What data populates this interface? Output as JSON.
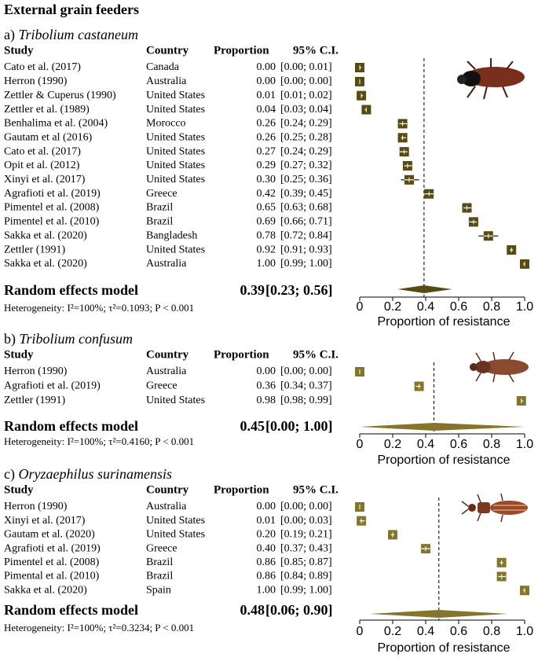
{
  "title": "External grain feeders",
  "chart_data": [
    {
      "type": "forest",
      "label": "a)",
      "species": "Tribolium castaneum",
      "color": "#574b12",
      "columns": [
        "Study",
        "Country",
        "Proportion",
        "95% C.I."
      ],
      "studies": [
        "Cato et al. (2017)",
        "Herron (1990)",
        "Zettler & Cuperus (1990)",
        "Zettler et al. (1989)",
        "Benhalima et al. (2004)",
        "Gautam et al (2016)",
        "Cato et al. (2017)",
        "Opit et al. (2012)",
        "Xinyi et al. (2017)",
        "Agrafioti et al. (2019)",
        "Pimentel et al. (2008)",
        "Pimentel et al. (2010)",
        "Sakka et al. (2020)",
        "Zettler (1991)",
        "Sakka et al. (2020)"
      ],
      "countries": [
        "Canada",
        "Australia",
        "United States",
        "United States",
        "Morocco",
        "United States",
        "United States",
        "United States",
        "United States",
        "Greece",
        "Brazil",
        "Brazil",
        "Bangladesh",
        "United States",
        "Australia"
      ],
      "values": [
        0,
        0,
        0.01,
        0.04,
        0.26,
        0.26,
        0.27,
        0.29,
        0.3,
        0.42,
        0.65,
        0.69,
        0.78,
        0.92,
        1
      ],
      "value_labels": [
        "0.00",
        "0.00",
        "0.01",
        "0.04",
        "0.26",
        "0.26",
        "0.27",
        "0.29",
        "0.30",
        "0.42",
        "0.65",
        "0.69",
        "0.78",
        "0.92",
        "1.00"
      ],
      "ci_lower": [
        0,
        0,
        0.01,
        0.03,
        0.24,
        0.25,
        0.24,
        0.27,
        0.25,
        0.39,
        0.63,
        0.66,
        0.72,
        0.91,
        0.99
      ],
      "ci_upper": [
        0.01,
        0,
        0.02,
        0.04,
        0.29,
        0.28,
        0.29,
        0.32,
        0.36,
        0.45,
        0.68,
        0.71,
        0.84,
        0.93,
        1
      ],
      "ci_labels": [
        "[0.00; 0.01]",
        "[0.00; 0.00]",
        "[0.01; 0.02]",
        "[0.03; 0.04]",
        "[0.24; 0.29]",
        "[0.25; 0.28]",
        "[0.24; 0.29]",
        "[0.27; 0.32]",
        "[0.25; 0.36]",
        "[0.39; 0.45]",
        "[0.63; 0.68]",
        "[0.66; 0.71]",
        "[0.72; 0.84]",
        "[0.91; 0.93]",
        "[0.99; 1.00]"
      ],
      "pooled": {
        "label": "Random effects model",
        "value": 0.39,
        "value_label": "0.39",
        "ci_lower": 0.23,
        "ci_upper": 0.56,
        "ci_label": "[0.23; 0.56]"
      },
      "heterogeneity": "Heterogeneity: I²=100%; τ²=0.1093; P < 0.001",
      "xlim": [
        0,
        1
      ],
      "xticks": [
        0,
        0.2,
        0.4,
        0.6,
        0.8,
        {
          "value": 1,
          "label": "1.0"
        }
      ],
      "xlabel": "Proportion of resistance"
    },
    {
      "type": "forest",
      "label": "b)",
      "species": "Tribolium confusum",
      "color": "#85742c",
      "columns": [
        "Study",
        "Country",
        "Proportion",
        "95% C.I."
      ],
      "studies": [
        "Herron (1990)",
        "Agrafioti et al. (2019)",
        "Zettler (1991)"
      ],
      "countries": [
        "Australia",
        "Greece",
        "United States"
      ],
      "values": [
        0,
        0.36,
        0.98
      ],
      "value_labels": [
        "0.00",
        "0.36",
        "0.98"
      ],
      "ci_lower": [
        0,
        0.34,
        0.98
      ],
      "ci_upper": [
        0,
        0.37,
        0.99
      ],
      "ci_labels": [
        "[0.00; 0.00]",
        "[0.34; 0.37]",
        "[0.98; 0.99]"
      ],
      "pooled": {
        "label": "Random effects model",
        "value": 0.45,
        "value_label": "0.45",
        "ci_lower": 0,
        "ci_upper": 1,
        "ci_label": "[0.00; 1.00]"
      },
      "heterogeneity": "Heterogeneity: I²=100%; τ²=0.4160; P < 0.001",
      "xlim": [
        0,
        1
      ],
      "xticks": [
        0,
        0.2,
        0.4,
        0.6,
        0.8,
        {
          "value": 1,
          "label": "1.0"
        }
      ],
      "xlabel": "Proportion of resistance"
    },
    {
      "type": "forest",
      "label": "c)",
      "species": "Oryzaephilus surinamensis",
      "color": "#85742c",
      "columns": [
        "Study",
        "Country",
        "Proportion",
        "95% C.I."
      ],
      "studies": [
        "Herron (1990)",
        "Xinyi et al. (2017)",
        "Gautam et al. (2020)",
        "Agrafioti et al. (2019)",
        "Pimentel et al. (2008)",
        "Pimental et al. (2010)",
        "Sakka et al. (2020)"
      ],
      "countries": [
        "Australia",
        "United States",
        "United States",
        "Greece",
        "Brazil",
        "Brazil",
        "Spain"
      ],
      "values": [
        0,
        0.01,
        0.2,
        0.4,
        0.86,
        0.86,
        1
      ],
      "value_labels": [
        "0.00",
        "0.01",
        "0.20",
        "0.40",
        "0.86",
        "0.86",
        "1.00"
      ],
      "ci_lower": [
        0,
        0,
        0.19,
        0.37,
        0.85,
        0.84,
        0.99
      ],
      "ci_upper": [
        0,
        0.03,
        0.21,
        0.43,
        0.87,
        0.89,
        1
      ],
      "ci_labels": [
        "[0.00; 0.00]",
        "[0.00; 0.03]",
        "[0.19; 0.21]",
        "[0.37; 0.43]",
        "[0.85; 0.87]",
        "[0.84; 0.89]",
        "[0.99; 1.00]"
      ],
      "pooled": {
        "label": "Random effects model",
        "value": 0.48,
        "value_label": "0.48",
        "ci_lower": 0.06,
        "ci_upper": 0.9,
        "ci_label": "[0.06; 0.90]"
      },
      "heterogeneity": "Heterogeneity: I²=100%; τ²=0.3234; P < 0.001",
      "xlim": [
        0,
        1
      ],
      "xticks": [
        0,
        0.2,
        0.4,
        0.6,
        0.8,
        {
          "value": 1,
          "label": "1.0"
        }
      ],
      "xlabel": "Proportion of resistance"
    }
  ]
}
